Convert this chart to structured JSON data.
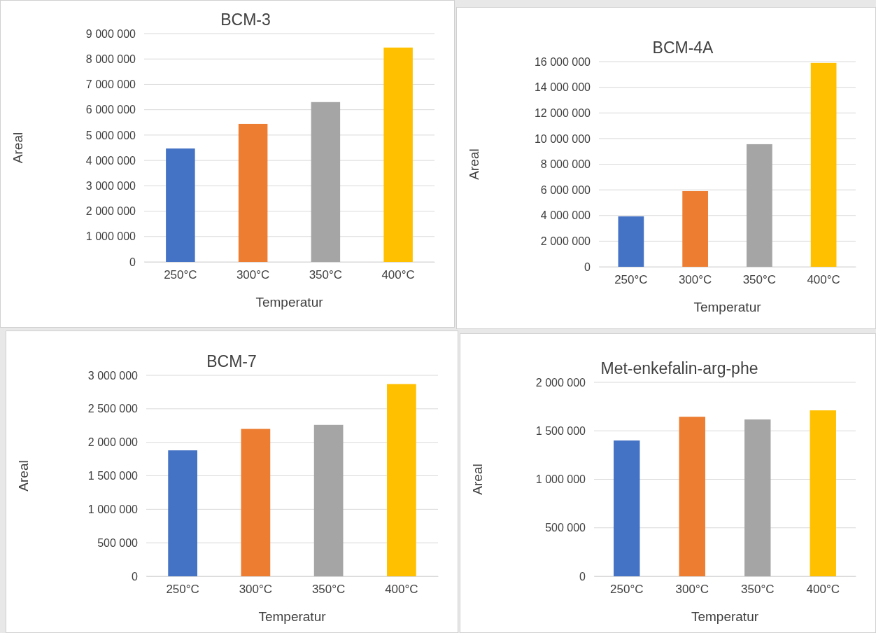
{
  "chart_data": [
    {
      "type": "bar",
      "title": "BCM-3",
      "xlabel": "Temperatur",
      "ylabel": "Areal",
      "categories": [
        "250°C",
        "300°C",
        "350°C",
        "400°C"
      ],
      "values": [
        4470000,
        5440000,
        6300000,
        8450000
      ],
      "colors": [
        "#4472c4",
        "#ed7d31",
        "#a5a5a5",
        "#ffc000"
      ],
      "ylim": [
        0,
        9000000
      ],
      "yticks": [
        {
          "value": 0,
          "label": "0"
        },
        {
          "value": 1000000,
          "label": "1 000 000"
        },
        {
          "value": 2000000,
          "label": "2 000 000"
        },
        {
          "value": 3000000,
          "label": "3 000 000"
        },
        {
          "value": 4000000,
          "label": "4 000 000"
        },
        {
          "value": 5000000,
          "label": "5 000 000"
        },
        {
          "value": 6000000,
          "label": "6 000 000"
        },
        {
          "value": 7000000,
          "label": "7 000 000"
        },
        {
          "value": 8000000,
          "label": "8 000 000"
        },
        {
          "value": 9000000,
          "label": "9 000 000"
        }
      ],
      "grid": "y"
    },
    {
      "type": "bar",
      "title": "BCM-4A",
      "xlabel": "Temperatur",
      "ylabel": "Areal",
      "categories": [
        "250°C",
        "300°C",
        "350°C",
        "400°C"
      ],
      "values": [
        3930000,
        5900000,
        9560000,
        15900000
      ],
      "colors": [
        "#4472c4",
        "#ed7d31",
        "#a5a5a5",
        "#ffc000"
      ],
      "ylim": [
        0,
        16000000
      ],
      "yticks": [
        {
          "value": 0,
          "label": "0"
        },
        {
          "value": 2000000,
          "label": "2 000 000"
        },
        {
          "value": 4000000,
          "label": "4 000 000"
        },
        {
          "value": 6000000,
          "label": "6 000 000"
        },
        {
          "value": 8000000,
          "label": "8 000 000"
        },
        {
          "value": 10000000,
          "label": "10 000 000"
        },
        {
          "value": 12000000,
          "label": "12 000 000"
        },
        {
          "value": 14000000,
          "label": "14 000 000"
        },
        {
          "value": 16000000,
          "label": "16 000 000"
        }
      ],
      "grid": "y"
    },
    {
      "type": "bar",
      "title": "BCM-7",
      "xlabel": "Temperatur",
      "ylabel": "Areal",
      "categories": [
        "250°C",
        "300°C",
        "350°C",
        "400°C"
      ],
      "values": [
        1880000,
        2200000,
        2260000,
        2870000
      ],
      "colors": [
        "#4472c4",
        "#ed7d31",
        "#a5a5a5",
        "#ffc000"
      ],
      "ylim": [
        0,
        3000000
      ],
      "yticks": [
        {
          "value": 0,
          "label": "0"
        },
        {
          "value": 500000,
          "label": "500 000"
        },
        {
          "value": 1000000,
          "label": "1 000 000"
        },
        {
          "value": 1500000,
          "label": "1 500 000"
        },
        {
          "value": 2000000,
          "label": "2 000 000"
        },
        {
          "value": 2500000,
          "label": "2 500 000"
        },
        {
          "value": 3000000,
          "label": "3 000 000"
        }
      ],
      "grid": "y"
    },
    {
      "type": "bar",
      "title": "Met-enkefalin-arg-phe",
      "xlabel": "Temperatur",
      "ylabel": "Areal",
      "categories": [
        "250°C",
        "300°C",
        "350°C",
        "400°C"
      ],
      "values": [
        1400000,
        1645000,
        1617000,
        1711000
      ],
      "colors": [
        "#4472c4",
        "#ed7d31",
        "#a5a5a5",
        "#ffc000"
      ],
      "ylim": [
        0,
        2000000
      ],
      "yticks": [
        {
          "value": 0,
          "label": "0"
        },
        {
          "value": 500000,
          "label": "500 000"
        },
        {
          "value": 1000000,
          "label": "1 000 000"
        },
        {
          "value": 1500000,
          "label": "1 500 000"
        },
        {
          "value": 2000000,
          "label": "2 000 000"
        }
      ],
      "grid": "y"
    }
  ]
}
